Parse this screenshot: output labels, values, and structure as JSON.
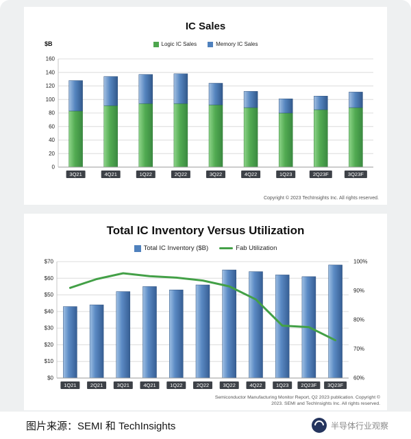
{
  "page": {
    "caption": "图片来源：SEMI 和 TechInsights",
    "watermark": "半导体行业观察"
  },
  "chart_data": [
    {
      "type": "bar",
      "stacked": true,
      "title": "IC Sales",
      "ylabel": "$B",
      "ylim": [
        0,
        160
      ],
      "yticks": [
        0,
        20,
        40,
        60,
        80,
        100,
        120,
        140,
        160
      ],
      "grid": true,
      "legend_position": "top",
      "categories": [
        "3Q21",
        "4Q21",
        "1Q22",
        "2Q22",
        "3Q22",
        "4Q22",
        "1Q23",
        "2Q23F",
        "3Q23F"
      ],
      "series": [
        {
          "name": "Logic IC Sales",
          "color": "#4ea64e",
          "values": [
            83,
            91,
            94,
            94,
            92,
            88,
            80,
            85,
            88
          ]
        },
        {
          "name": "Memory IC Sales",
          "color": "#4f81bd",
          "values": [
            45,
            43,
            43,
            44,
            32,
            24,
            21,
            20,
            23
          ]
        }
      ],
      "copyright": "Copyright © 2023 TechInsights Inc.  All rights reserved."
    },
    {
      "type": "combo",
      "title": "Total IC Inventory Versus Utilization",
      "grid": true,
      "legend_position": "top",
      "categories": [
        "1Q21",
        "2Q21",
        "3Q21",
        "4Q21",
        "1Q22",
        "2Q22",
        "3Q22",
        "4Q22",
        "1Q23",
        "2Q23F",
        "3Q23F"
      ],
      "left_axis": {
        "min": 0,
        "max": 70,
        "ticks": [
          "$0",
          "$10",
          "$20",
          "$30",
          "$40",
          "$50",
          "$60",
          "$70"
        ]
      },
      "right_axis": {
        "min": 60,
        "max": 100,
        "ticks": [
          "60%",
          "70%",
          "80%",
          "90%",
          "100%"
        ]
      },
      "bar_series": {
        "name": "Total IC Inventory ($B)",
        "type": "bar",
        "color": "#4f81bd",
        "values": [
          43,
          44,
          52,
          55,
          53,
          56,
          65,
          64,
          62,
          61,
          68
        ]
      },
      "line_series": {
        "name": "Fab Utilization",
        "type": "line",
        "color": "#43a047",
        "values": [
          91,
          94,
          96,
          95,
          94.5,
          93.5,
          91.5,
          87,
          78,
          77.5,
          73
        ]
      },
      "source": "Semiconductor Manufacturing Monitor Report, Q2 2023 publication. Copyright © 2023. SEMI and TechInsights Inc. All rights reserved."
    }
  ]
}
